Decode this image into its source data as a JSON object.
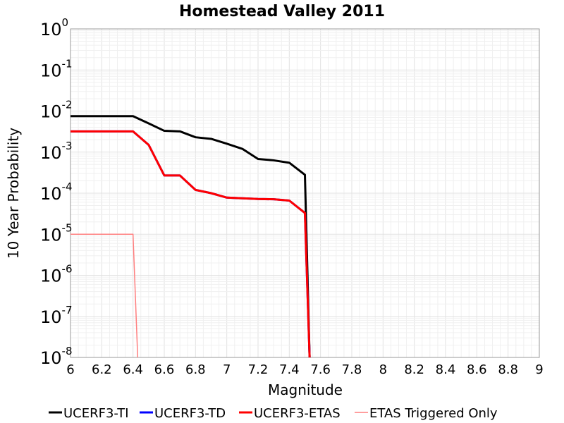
{
  "chart_data": {
    "type": "line",
    "title": "Homestead Valley 2011",
    "xlabel": "Magnitude",
    "ylabel": "10 Year Probability",
    "xlim": [
      6,
      9
    ],
    "ylim": [
      1e-08,
      1
    ],
    "yscale": "log",
    "grid": true,
    "legend_position": "bottom",
    "x_ticks": [
      "6",
      "6.2",
      "6.4",
      "6.6",
      "6.8",
      "7",
      "7.2",
      "7.4",
      "7.6",
      "7.8",
      "8",
      "8.2",
      "8.4",
      "8.6",
      "8.8",
      "9"
    ],
    "y_ticks": [
      {
        "base": "10",
        "exp": "0"
      },
      {
        "base": "10",
        "exp": "-1"
      },
      {
        "base": "10",
        "exp": "-2"
      },
      {
        "base": "10",
        "exp": "-3"
      },
      {
        "base": "10",
        "exp": "-4"
      },
      {
        "base": "10",
        "exp": "-5"
      },
      {
        "base": "10",
        "exp": "-6"
      },
      {
        "base": "10",
        "exp": "-7"
      },
      {
        "base": "10",
        "exp": "-8"
      }
    ],
    "series": [
      {
        "name": "UCERF3-TI",
        "color": "#000000",
        "width": 3,
        "points": [
          [
            6.0,
            0.0075
          ],
          [
            6.1,
            0.0075
          ],
          [
            6.2,
            0.0075
          ],
          [
            6.3,
            0.0075
          ],
          [
            6.4,
            0.0075
          ],
          [
            6.5,
            0.005
          ],
          [
            6.6,
            0.0033
          ],
          [
            6.7,
            0.0032
          ],
          [
            6.8,
            0.0023
          ],
          [
            6.9,
            0.0021
          ],
          [
            7.0,
            0.0016
          ],
          [
            7.1,
            0.0012
          ],
          [
            7.2,
            0.00068
          ],
          [
            7.3,
            0.00063
          ],
          [
            7.4,
            0.00055
          ],
          [
            7.5,
            0.00028
          ],
          [
            7.53,
            1e-09
          ]
        ]
      },
      {
        "name": "UCERF3-TD",
        "color": "#0000ff",
        "width": 3,
        "points": [
          [
            6.0,
            0.0032
          ],
          [
            6.1,
            0.0032
          ],
          [
            6.2,
            0.0032
          ],
          [
            6.3,
            0.0032
          ],
          [
            6.4,
            0.0032
          ],
          [
            6.5,
            0.0015
          ],
          [
            6.6,
            0.00027
          ],
          [
            6.7,
            0.00027
          ],
          [
            6.8,
            0.00012
          ],
          [
            6.9,
            0.0001
          ],
          [
            7.0,
            7.8e-05
          ],
          [
            7.1,
            7.5e-05
          ],
          [
            7.2,
            7.2e-05
          ],
          [
            7.3,
            7.1e-05
          ],
          [
            7.4,
            6.6e-05
          ],
          [
            7.5,
            3.3e-05
          ],
          [
            7.53,
            1e-09
          ]
        ]
      },
      {
        "name": "UCERF3-ETAS",
        "color": "#ff0000",
        "width": 3,
        "points": [
          [
            6.0,
            0.0032
          ],
          [
            6.1,
            0.0032
          ],
          [
            6.2,
            0.0032
          ],
          [
            6.3,
            0.0032
          ],
          [
            6.4,
            0.0032
          ],
          [
            6.5,
            0.0015
          ],
          [
            6.6,
            0.00027
          ],
          [
            6.7,
            0.00027
          ],
          [
            6.8,
            0.00012
          ],
          [
            6.9,
            0.0001
          ],
          [
            7.0,
            7.8e-05
          ],
          [
            7.1,
            7.5e-05
          ],
          [
            7.2,
            7.2e-05
          ],
          [
            7.3,
            7.1e-05
          ],
          [
            7.4,
            6.6e-05
          ],
          [
            7.5,
            3.3e-05
          ],
          [
            7.53,
            1e-09
          ]
        ]
      },
      {
        "name": "ETAS Triggered Only",
        "color": "#ff7f7f",
        "width": 1.5,
        "points": [
          [
            6.0,
            1e-05
          ],
          [
            6.1,
            1e-05
          ],
          [
            6.2,
            1e-05
          ],
          [
            6.3,
            1e-05
          ],
          [
            6.4,
            1e-05
          ],
          [
            6.43,
            1e-09
          ]
        ]
      }
    ]
  }
}
